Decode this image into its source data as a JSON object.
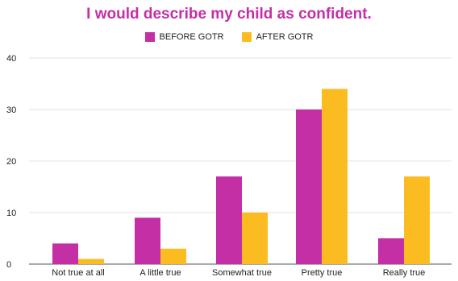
{
  "chart_data": {
    "type": "bar",
    "title": "I would describe my child as confident.",
    "categories": [
      "Not true at all",
      "A little true",
      "Somewhat true",
      "Pretty true",
      "Really true"
    ],
    "series": [
      {
        "name": "BEFORE GOTR",
        "color": "#c52fa6",
        "values": [
          4,
          9,
          17,
          30,
          5
        ]
      },
      {
        "name": "AFTER GOTR",
        "color": "#fbbc22",
        "values": [
          1,
          3,
          10,
          34,
          17
        ]
      }
    ],
    "ylim": [
      0,
      40
    ],
    "yticks": [
      0,
      10,
      20,
      30,
      40
    ],
    "grid": true,
    "legend_position": "top-center",
    "title_color": "#c52fa6",
    "grid_color": "#e3e3e3",
    "axis_color": "#555555"
  }
}
